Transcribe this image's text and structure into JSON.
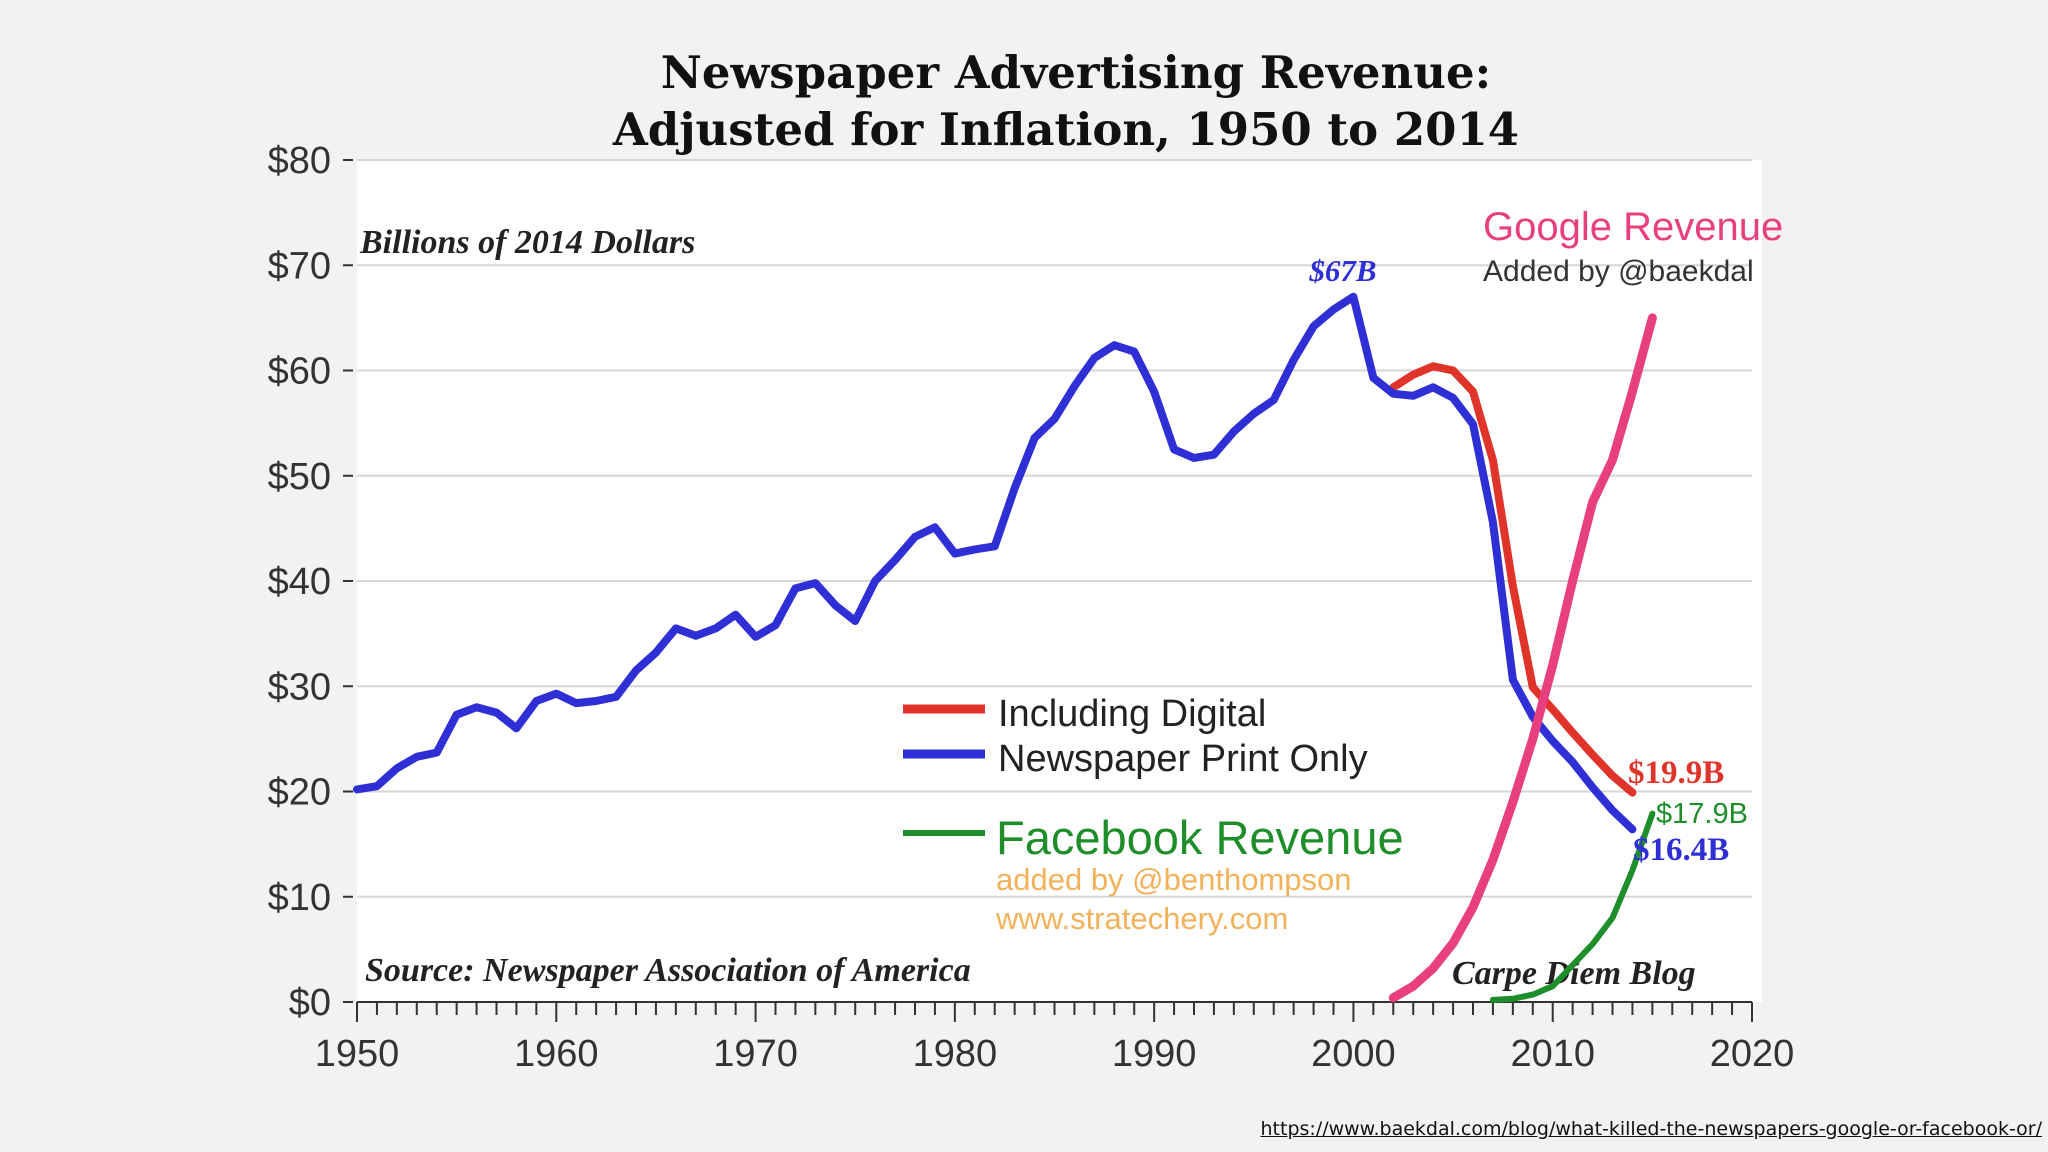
{
  "chart_data": {
    "type": "line",
    "title_line1": "Newspaper Advertising Revenue:",
    "title_line2": "Adjusted for Inflation, 1950 to 2014",
    "subtitle": "Billions of 2014 Dollars",
    "source": "Source: Newspaper Association of America",
    "credit": "Carpe Diem Blog",
    "x_ticks": [
      1950,
      1960,
      1970,
      1980,
      1990,
      2000,
      2010,
      2020
    ],
    "y_ticks": [
      "$0",
      "$10",
      "$20",
      "$30",
      "$40",
      "$50",
      "$60",
      "$70",
      "$80"
    ],
    "xlim": [
      1950,
      2020
    ],
    "ylim": [
      0,
      80
    ],
    "grid": true,
    "legend": [
      {
        "label": "Including Digital",
        "color": "#e0332a"
      },
      {
        "label": "Newspaper Print Only",
        "color": "#2f2fd6"
      }
    ],
    "facebook_label": {
      "title": "Facebook Revenue",
      "note1": "added by @benthompson",
      "note2": "www.stratechery.com"
    },
    "google_label": {
      "title": "Google Revenue",
      "note": "Added by @baekdal"
    },
    "annotations": {
      "peak": "$67B",
      "digital_end": "$19.9B",
      "facebook_end": "$17.9B",
      "print_end": "$16.4B"
    },
    "series": [
      {
        "name": "Newspaper Print Only",
        "color": "#2f2fd6",
        "x": [
          1950,
          1951,
          1952,
          1953,
          1954,
          1955,
          1956,
          1957,
          1958,
          1959,
          1960,
          1961,
          1962,
          1963,
          1964,
          1965,
          1966,
          1967,
          1968,
          1969,
          1970,
          1971,
          1972,
          1973,
          1974,
          1975,
          1976,
          1977,
          1978,
          1979,
          1980,
          1981,
          1982,
          1983,
          1984,
          1985,
          1986,
          1987,
          1988,
          1989,
          1990,
          1991,
          1992,
          1993,
          1994,
          1995,
          1996,
          1997,
          1998,
          1999,
          2000,
          2001,
          2002,
          2003,
          2004,
          2005,
          2006,
          2007,
          2008,
          2009,
          2010,
          2011,
          2012,
          2013,
          2014
        ],
        "y": [
          20.2,
          20.5,
          22.2,
          23.3,
          23.7,
          27.3,
          28.0,
          27.5,
          26.0,
          28.6,
          29.3,
          28.4,
          28.6,
          29.0,
          31.5,
          33.2,
          35.5,
          34.8,
          35.5,
          36.8,
          34.7,
          35.8,
          39.3,
          39.8,
          37.7,
          36.2,
          40.0,
          42.0,
          44.2,
          45.1,
          42.6,
          43.0,
          43.3,
          48.8,
          53.6,
          55.4,
          58.5,
          61.2,
          62.4,
          61.8,
          58.0,
          52.5,
          51.7,
          52.0,
          54.2,
          55.9,
          57.2,
          61.0,
          64.2,
          65.8,
          67.0,
          59.3,
          57.8,
          57.6,
          58.4,
          57.4,
          54.9,
          45.6,
          30.6,
          27.1,
          24.8,
          22.8,
          20.4,
          18.2,
          16.4
        ]
      },
      {
        "name": "Including Digital",
        "color": "#e0332a",
        "x": [
          2002,
          2003,
          2004,
          2005,
          2006,
          2007,
          2008,
          2009,
          2010,
          2011,
          2012,
          2013,
          2014
        ],
        "y": [
          58.4,
          59.6,
          60.4,
          60.0,
          58.0,
          51.5,
          39.5,
          29.9,
          27.8,
          25.6,
          23.5,
          21.5,
          19.9
        ]
      },
      {
        "name": "Google Revenue",
        "color": "#e8407f",
        "x": [
          2002,
          2003,
          2004,
          2005,
          2006,
          2007,
          2008,
          2009,
          2010,
          2011,
          2012,
          2013,
          2014,
          2015
        ],
        "y": [
          0.4,
          1.5,
          3.2,
          5.6,
          9.0,
          13.5,
          19.0,
          25.0,
          32.0,
          40.0,
          47.5,
          51.5,
          58.0,
          65.0
        ]
      },
      {
        "name": "Facebook Revenue",
        "color": "#1e8e2a",
        "x": [
          2007,
          2008,
          2009,
          2010,
          2011,
          2012,
          2013,
          2014,
          2015
        ],
        "y": [
          0.2,
          0.3,
          0.7,
          1.5,
          3.5,
          5.5,
          8.0,
          12.5,
          17.9
        ]
      }
    ]
  },
  "source_url": "https://www.baekdal.com/blog/what-killed-the-newspapers-google-or-facebook-or/"
}
